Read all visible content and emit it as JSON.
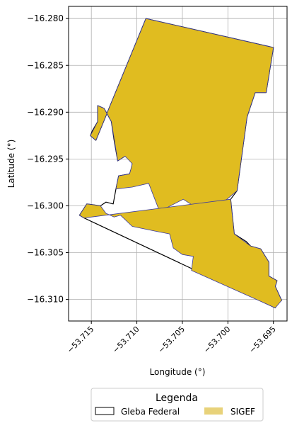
{
  "chart_data": {
    "type": "map",
    "xlabel": "Longitude (°)",
    "ylabel": "Latitude (°)",
    "xlim": [
      -53.7175,
      -53.6935
    ],
    "ylim": [
      -16.3123,
      -16.2787
    ],
    "grid": true,
    "x_ticks": [
      {
        "value": -53.715,
        "label": "−53.715"
      },
      {
        "value": -53.71,
        "label": "−53.710"
      },
      {
        "value": -53.705,
        "label": "−53.705"
      },
      {
        "value": -53.7,
        "label": "−53.700"
      },
      {
        "value": -53.695,
        "label": "−53.695"
      }
    ],
    "y_ticks": [
      {
        "value": -16.28,
        "label": "−16.280"
      },
      {
        "value": -16.285,
        "label": "−16.285"
      },
      {
        "value": -16.29,
        "label": "−16.290"
      },
      {
        "value": -16.295,
        "label": "−16.295"
      },
      {
        "value": -16.3,
        "label": "−16.300"
      },
      {
        "value": -16.305,
        "label": "−16.305"
      },
      {
        "value": -16.31,
        "label": "−16.310"
      }
    ],
    "legend": {
      "title": "Legenda",
      "placement": "bottom-center",
      "entries": [
        {
          "label": "Gleba Federal",
          "style": "outline",
          "edge": "#000000",
          "fill": "#ffffff"
        },
        {
          "label": "SIGEF",
          "style": "fill",
          "fill": "#e8d27a"
        }
      ]
    },
    "layers": [
      {
        "name": "Gleba Federal",
        "edge": "#000000",
        "fill": "#ffffff",
        "polygons": [
          [
            [
              -53.709,
              -16.28
            ],
            [
              -53.695,
              -16.2831
            ],
            [
              -53.6958,
              -16.2879
            ],
            [
              -53.697,
              -16.2879
            ],
            [
              -53.6979,
              -16.2905
            ],
            [
              -53.699,
              -16.2984
            ],
            [
              -53.6997,
              -16.2993
            ],
            [
              -53.6993,
              -16.303
            ],
            [
              -53.698,
              -16.3038
            ],
            [
              -53.6975,
              -16.3043
            ],
            [
              -53.6964,
              -16.3046
            ],
            [
              -53.6955,
              -16.306
            ],
            [
              -53.6955,
              -16.3075
            ],
            [
              -53.6946,
              -16.308
            ],
            [
              -53.6948,
              -16.3086
            ],
            [
              -53.6941,
              -16.3101
            ],
            [
              -53.6949,
              -16.3107
            ],
            [
              -53.6948,
              -16.3109
            ],
            [
              -53.7158,
              -16.3013
            ],
            [
              -53.7163,
              -16.301
            ],
            [
              -53.7155,
              -16.2998
            ],
            [
              -53.714,
              -16.3
            ],
            [
              -53.7134,
              -16.2996
            ],
            [
              -53.7126,
              -16.2998
            ],
            [
              -53.7123,
              -16.2982
            ],
            [
              -53.712,
              -16.2968
            ],
            [
              -53.7108,
              -16.2966
            ],
            [
              -53.7106,
              -16.296
            ],
            [
              -53.7105,
              -16.2955
            ],
            [
              -53.7108,
              -16.295
            ],
            [
              -53.7113,
              -16.2947
            ],
            [
              -53.7121,
              -16.2952
            ],
            [
              -53.7125,
              -16.293
            ],
            [
              -53.7128,
              -16.291
            ],
            [
              -53.7136,
              -16.2896
            ],
            [
              -53.7143,
              -16.2893
            ],
            [
              -53.7143,
              -16.291
            ],
            [
              -53.7149,
              -16.292
            ],
            [
              -53.7151,
              -16.2925
            ],
            [
              -53.7145,
              -16.293
            ]
          ]
        ]
      },
      {
        "name": "SIGEF",
        "fill": "#e0bc20",
        "edge": "#3a3aa0",
        "polygons": [
          [
            [
              -53.709,
              -16.28
            ],
            [
              -53.695,
              -16.2831
            ],
            [
              -53.6958,
              -16.2879
            ],
            [
              -53.697,
              -16.2879
            ],
            [
              -53.6979,
              -16.2905
            ],
            [
              -53.699,
              -16.2984
            ],
            [
              -53.7022,
              -16.301
            ],
            [
              -53.7049,
              -16.2993
            ],
            [
              -53.7075,
              -16.3006
            ],
            [
              -53.7087,
              -16.2976
            ],
            [
              -53.7105,
              -16.298
            ],
            [
              -53.7123,
              -16.2982
            ],
            [
              -53.712,
              -16.2968
            ],
            [
              -53.7108,
              -16.2966
            ],
            [
              -53.7105,
              -16.2955
            ],
            [
              -53.7113,
              -16.2947
            ],
            [
              -53.7121,
              -16.2952
            ],
            [
              -53.7128,
              -16.291
            ],
            [
              -53.7136,
              -16.2896
            ],
            [
              -53.7143,
              -16.2893
            ],
            [
              -53.7143,
              -16.291
            ],
            [
              -53.7151,
              -16.2925
            ],
            [
              -53.7145,
              -16.293
            ]
          ],
          [
            [
              -53.6997,
              -16.2993
            ],
            [
              -53.6993,
              -16.303
            ],
            [
              -53.6975,
              -16.3043
            ],
            [
              -53.6964,
              -16.3046
            ],
            [
              -53.6955,
              -16.306
            ],
            [
              -53.6955,
              -16.3075
            ],
            [
              -53.6946,
              -16.308
            ],
            [
              -53.6948,
              -16.3086
            ],
            [
              -53.6941,
              -16.3101
            ],
            [
              -53.6948,
              -16.3109
            ],
            [
              -53.704,
              -16.3069
            ],
            [
              -53.7038,
              -16.3054
            ],
            [
              -53.705,
              -16.3052
            ],
            [
              -53.706,
              -16.3045
            ],
            [
              -53.7064,
              -16.303
            ],
            [
              -53.708,
              -16.3027
            ],
            [
              -53.7105,
              -16.3022
            ],
            [
              -53.7118,
              -16.301
            ],
            [
              -53.7125,
              -16.3012
            ],
            [
              -53.7134,
              -16.3008
            ],
            [
              -53.714,
              -16.3
            ],
            [
              -53.7155,
              -16.2998
            ],
            [
              -53.7163,
              -16.301
            ],
            [
              -53.7158,
              -16.3013
            ]
          ]
        ]
      }
    ]
  }
}
